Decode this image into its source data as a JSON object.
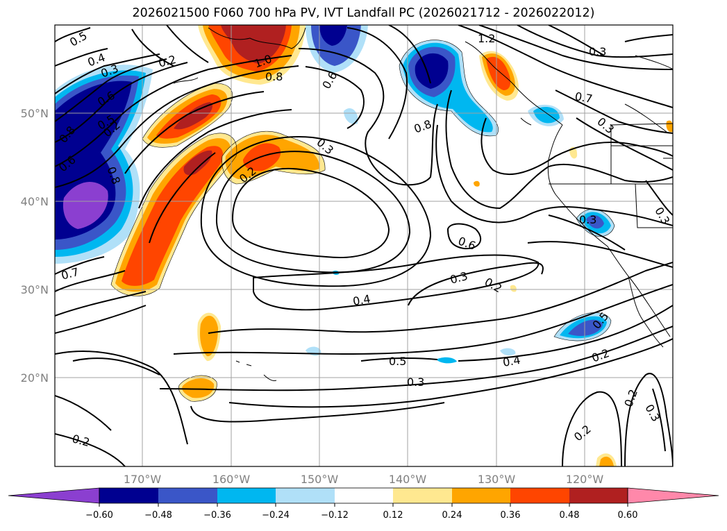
{
  "title": "2026021500 F060 700 hPa PV, IVT Landfall PC (2026021712 - 2026022012)",
  "lat_labels": [
    "20°N",
    "30°N",
    "40°N",
    "50°N"
  ],
  "lon_labels": [
    "170°W",
    "160°W",
    "150°W",
    "140°W",
    "130°W",
    "120°W"
  ],
  "contour_labels": [
    "0.5",
    "0.4",
    "0.3",
    "0.2",
    "1.0",
    "0.8",
    "0.6",
    "1.2",
    "0.2",
    "0.6",
    "0.8",
    "0.7",
    "0.8",
    "0.3",
    "0.5",
    "0.6",
    "0.8",
    "0.2",
    "0.3",
    "0.7",
    "0.3",
    "0.6",
    "0.3",
    "0.2",
    "0.4",
    "0.5",
    "0.3",
    "0.4",
    "0.2",
    "0.5",
    "0.2",
    "0.3",
    "0.2",
    "0.2",
    "0.3",
    "0.3"
  ],
  "colorbar": {
    "ticks": [
      "−0.60",
      "−0.48",
      "−0.36",
      "−0.24",
      "−0.12",
      "0.12",
      "0.24",
      "0.36",
      "0.48",
      "0.60"
    ],
    "colors": [
      "#8b3fd0",
      "#000090",
      "#3a56c8",
      "#00b7f0",
      "#b0e0f8",
      "#ffffff",
      "#ffe890",
      "#ffa500",
      "#ff4500",
      "#b02020",
      "#ff88aa"
    ]
  },
  "colors": {
    "neg_purple": "#8b3fd0",
    "neg_navy": "#000090",
    "neg_blue": "#3a56c8",
    "neg_cyan": "#00b7f0",
    "neg_light": "#b0e0f8",
    "pos_yellow": "#ffe890",
    "pos_orange": "#ffa500",
    "pos_redorange": "#ff4500",
    "pos_darkred": "#b02020",
    "pos_pink": "#ff88aa"
  }
}
